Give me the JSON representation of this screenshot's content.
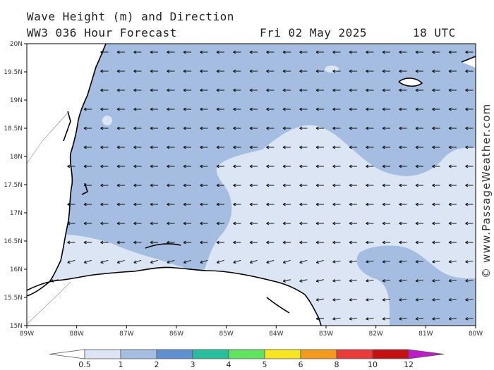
{
  "header": {
    "title": "Wave Height (m) and Direction",
    "model_line": "WW3 036 Hour Forecast",
    "date": "Fri 02 May 2025",
    "time": "18 UTC"
  },
  "map": {
    "lat_labels": [
      "20N",
      "19.5N",
      "19N",
      "18.5N",
      "18N",
      "17.5N",
      "17N",
      "16.5N",
      "16N",
      "15.5N",
      "15N"
    ],
    "lon_labels": [
      "89W",
      "88W",
      "87W",
      "86W",
      "85W",
      "84W",
      "83W",
      "82W",
      "81W",
      "80W"
    ],
    "lat_range": [
      15,
      20
    ],
    "lon_range": [
      -89,
      -80
    ],
    "wave_direction": "westward, turning southwest along the Honduras coast",
    "colors": {
      "land": "#ffffff",
      "sea_light": "#dce5f4",
      "sea_medium": "#a4bde0",
      "coast": "#000000",
      "arrow": "#111111"
    }
  },
  "credit": "© www.PassageWeather.com",
  "colorbar": {
    "labels": [
      "0.5",
      "1",
      "2",
      "3",
      "4",
      "5",
      "6",
      "8",
      "10",
      "12"
    ],
    "colors": [
      "#dce5f4",
      "#a4bde0",
      "#5f8fd0",
      "#27bf9b",
      "#5ee45e",
      "#f5e51e",
      "#f39a1a",
      "#ea3a3a",
      "#c41212",
      "#c01bcb"
    ]
  }
}
